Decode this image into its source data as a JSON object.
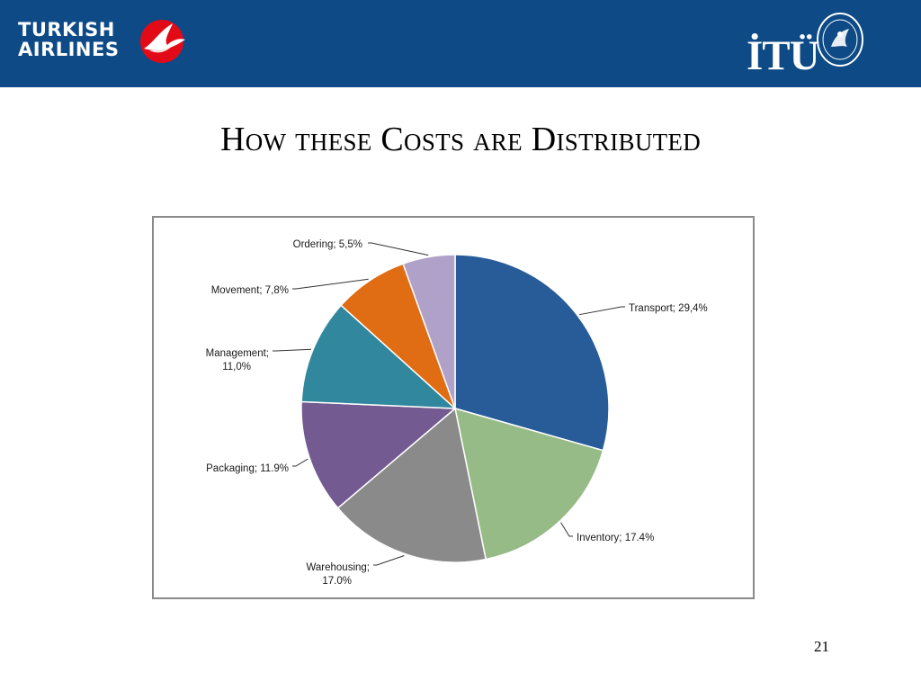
{
  "header": {
    "logo_left_line1": "TURKISH",
    "logo_left_line2": "AIRLINES",
    "logo_right": "İTÜ"
  },
  "slide": {
    "title": "How these Costs are Distributed",
    "page_number": "21"
  },
  "colors": {
    "header_bg": "#0d4a86",
    "transport": "#275c99",
    "inventory": "#97bb86",
    "warehousing": "#8a8a8a",
    "packaging": "#735a91",
    "management": "#31879d",
    "movement": "#e06c14",
    "ordering": "#b0a1c9"
  },
  "chart_data": {
    "type": "pie",
    "title": "",
    "slices": [
      {
        "name": "Transport",
        "value": 29.4,
        "label_lines": [
          "Transport; 29,4%"
        ],
        "color": "#275c99"
      },
      {
        "name": "Inventory",
        "value": 17.4,
        "label_lines": [
          "Inventory; 17.4%"
        ],
        "color": "#97bb86"
      },
      {
        "name": "Warehousing",
        "value": 17.0,
        "label_lines": [
          "Warehousing;",
          "17.0%"
        ],
        "color": "#8a8a8a"
      },
      {
        "name": "Packaging",
        "value": 11.9,
        "label_lines": [
          "Packaging; 11.9%"
        ],
        "color": "#735a91"
      },
      {
        "name": "Management",
        "value": 11.0,
        "label_lines": [
          "Management;",
          "11,0%"
        ],
        "color": "#31879d"
      },
      {
        "name": "Movement",
        "value": 7.8,
        "label_lines": [
          "Movement; 7,8%"
        ],
        "color": "#e06c14"
      },
      {
        "name": "Ordering",
        "value": 5.5,
        "label_lines": [
          "Ordering; 5,5%"
        ],
        "color": "#b0a1c9"
      }
    ]
  }
}
